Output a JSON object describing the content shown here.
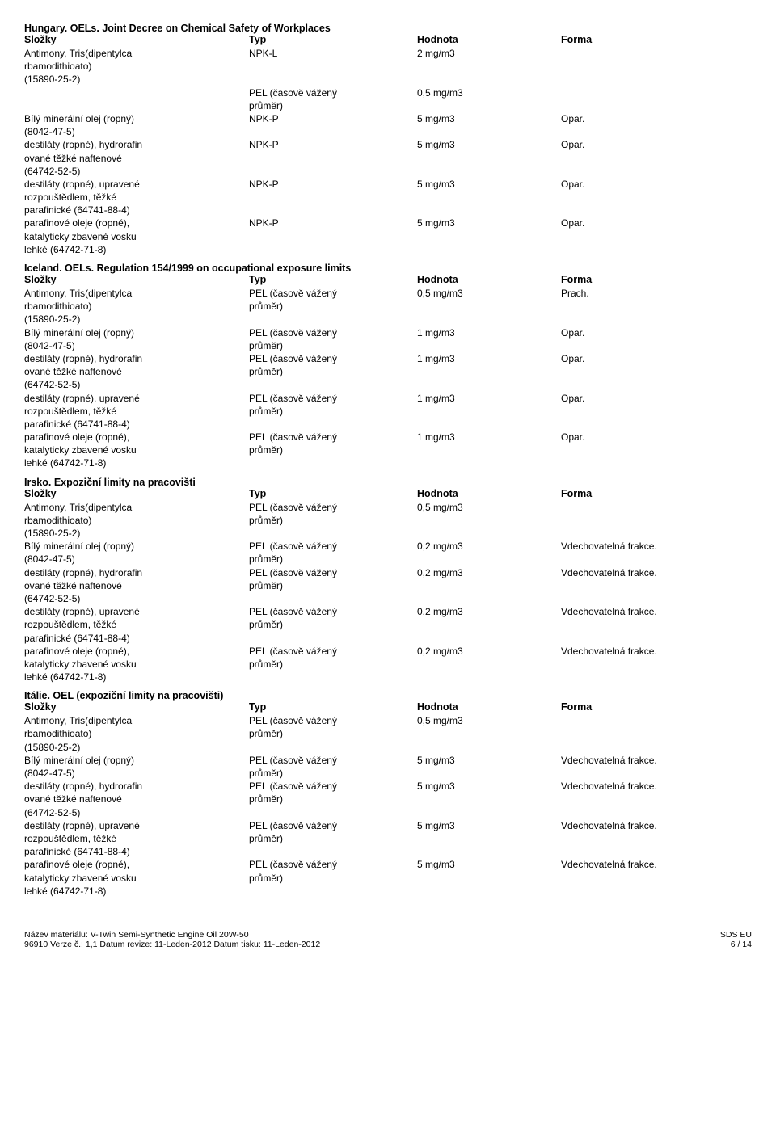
{
  "columns": {
    "slozky": "Složky",
    "typ": "Typ",
    "hodnota": "Hodnota",
    "forma": "Forma"
  },
  "pel_text": "PEL (časově vážený\nprůměr)",
  "substances": {
    "antimony": "Antimony, Tris(dipentylca\nrbamodithioato)\n(15890-25-2)",
    "bily": "Bílý minerální olej (ropný)\n(8042-47-5)",
    "hydrorafin": "destiláty (ropné), hydrorafin\nované těžké naftenové\n(64742-52-5)",
    "upravene": "destiláty (ropné), upravené\nrozpouštědlem, těžké\nparafinické (64741-88-4)",
    "parafinove": "parafinové oleje (ropné),\nkatalyticky zbavené vosku\nlehké (64742-71-8)"
  },
  "sections": [
    {
      "title": "Hungary. OELs. Joint Decree on Chemical Safety of Workplaces",
      "rows": [
        {
          "slozky_key": "antimony",
          "typ": "NPK-L",
          "hodnota": "2 mg/m3",
          "forma": ""
        },
        {
          "slozky_key": "",
          "typ": "PEL",
          "hodnota": "0,5 mg/m3",
          "forma": ""
        },
        {
          "slozky_key": "bily",
          "typ": "NPK-P",
          "hodnota": "5 mg/m3",
          "forma": "Opar."
        },
        {
          "slozky_key": "hydrorafin",
          "typ": "NPK-P",
          "hodnota": "5 mg/m3",
          "forma": "Opar."
        },
        {
          "slozky_key": "upravene",
          "typ": "NPK-P",
          "hodnota": "5 mg/m3",
          "forma": "Opar."
        },
        {
          "slozky_key": "parafinove",
          "typ": "NPK-P",
          "hodnota": "5 mg/m3",
          "forma": "Opar."
        }
      ]
    },
    {
      "title": "Iceland. OELs. Regulation 154/1999 on occupational exposure limits",
      "rows": [
        {
          "slozky_key": "antimony",
          "typ": "PEL",
          "hodnota": "0,5 mg/m3",
          "forma": "Prach."
        },
        {
          "slozky_key": "bily",
          "typ": "PEL",
          "hodnota": "1 mg/m3",
          "forma": "Opar."
        },
        {
          "slozky_key": "hydrorafin",
          "typ": "PEL",
          "hodnota": "1 mg/m3",
          "forma": "Opar."
        },
        {
          "slozky_key": "upravene",
          "typ": "PEL",
          "hodnota": "1 mg/m3",
          "forma": "Opar."
        },
        {
          "slozky_key": "parafinove",
          "typ": "PEL",
          "hodnota": "1 mg/m3",
          "forma": "Opar."
        }
      ]
    },
    {
      "title": "Irsko. Expoziční limity na pracovišti",
      "rows": [
        {
          "slozky_key": "antimony",
          "typ": "PEL",
          "hodnota": "0,5 mg/m3",
          "forma": ""
        },
        {
          "slozky_key": "bily",
          "typ": "PEL",
          "hodnota": "0,2 mg/m3",
          "forma": "Vdechovatelná frakce."
        },
        {
          "slozky_key": "hydrorafin",
          "typ": "PEL",
          "hodnota": "0,2 mg/m3",
          "forma": "Vdechovatelná frakce."
        },
        {
          "slozky_key": "upravene",
          "typ": "PEL",
          "hodnota": "0,2 mg/m3",
          "forma": "Vdechovatelná frakce."
        },
        {
          "slozky_key": "parafinove",
          "typ": "PEL",
          "hodnota": "0,2 mg/m3",
          "forma": "Vdechovatelná frakce."
        }
      ]
    },
    {
      "title": "Itálie. OEL (expoziční limity na pracovišti)",
      "rows": [
        {
          "slozky_key": "antimony",
          "typ": "PEL",
          "hodnota": "0,5 mg/m3",
          "forma": ""
        },
        {
          "slozky_key": "bily",
          "typ": "PEL",
          "hodnota": "5 mg/m3",
          "forma": "Vdechovatelná frakce."
        },
        {
          "slozky_key": "hydrorafin",
          "typ": "PEL",
          "hodnota": "5 mg/m3",
          "forma": "Vdechovatelná frakce."
        },
        {
          "slozky_key": "upravene",
          "typ": "PEL",
          "hodnota": "5 mg/m3",
          "forma": "Vdechovatelná frakce."
        },
        {
          "slozky_key": "parafinove",
          "typ": "PEL",
          "hodnota": "5 mg/m3",
          "forma": "Vdechovatelná frakce."
        }
      ]
    }
  ],
  "footer": {
    "material_label": "Název materiálu: ",
    "material_value": "V-Twin Semi-Synthetic Engine Oil 20W-50",
    "line2": "96910    Verze č.: 1,1    Datum revize: 11-Leden-2012    Datum tisku: 11-Leden-2012",
    "right_top": "SDS EU",
    "right_bot": "6 / 14"
  }
}
